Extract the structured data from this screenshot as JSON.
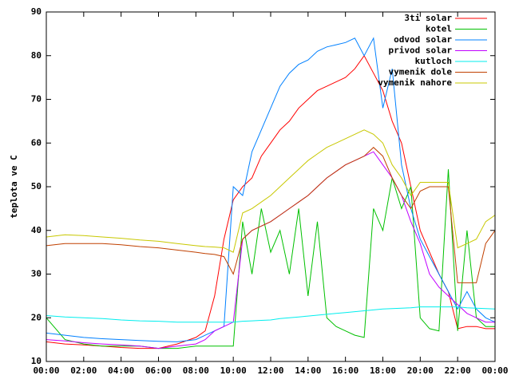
{
  "chart_data": {
    "type": "line",
    "ylabel": "teplota ve C",
    "x": [
      0,
      1,
      2,
      3,
      4,
      5,
      6,
      7,
      8,
      8.5,
      9,
      9.5,
      10,
      10.5,
      11,
      11.5,
      12,
      12.5,
      13,
      13.5,
      14,
      14.5,
      15,
      15.5,
      16,
      16.5,
      17,
      17.5,
      18,
      18.5,
      19,
      19.5,
      20,
      20.5,
      21,
      21.5,
      22,
      22.5,
      23,
      23.5,
      24
    ],
    "xlim": [
      0,
      24
    ],
    "xticks": [
      {
        "value": 0,
        "label": "00:00"
      },
      {
        "value": 2,
        "label": "02:00"
      },
      {
        "value": 4,
        "label": "04:00"
      },
      {
        "value": 6,
        "label": "06:00"
      },
      {
        "value": 8,
        "label": "08:00"
      },
      {
        "value": 10,
        "label": "10:00"
      },
      {
        "value": 12,
        "label": "12:00"
      },
      {
        "value": 14,
        "label": "14:00"
      },
      {
        "value": 16,
        "label": "16:00"
      },
      {
        "value": 18,
        "label": "18:00"
      },
      {
        "value": 20,
        "label": "20:00"
      },
      {
        "value": 22,
        "label": "22:00"
      },
      {
        "value": 24,
        "label": "00:00"
      }
    ],
    "ylim": [
      10,
      90
    ],
    "yticks": [
      10,
      20,
      30,
      40,
      50,
      60,
      70,
      80,
      90
    ],
    "legend": "top-right",
    "series": [
      {
        "name": "3ti solar",
        "color": "#ff0000",
        "values": [
          14.5,
          14,
          13.8,
          13.5,
          13.2,
          13,
          13,
          14,
          15.5,
          17,
          25,
          38,
          47,
          50,
          52,
          57,
          60,
          63,
          65,
          68,
          70,
          72,
          73,
          74,
          75,
          77,
          80,
          76,
          72,
          65,
          60,
          50,
          40,
          35,
          30,
          26,
          17.5,
          18,
          18,
          17.5,
          17.5
        ]
      },
      {
        "name": "kotel",
        "color": "#00c000",
        "values": [
          20,
          15,
          14,
          13.5,
          13.5,
          13.5,
          13,
          13,
          13.5,
          13.5,
          13.5,
          13.5,
          13.5,
          42,
          30,
          45,
          35,
          40,
          30,
          45,
          25,
          42,
          20,
          18,
          17,
          16,
          15.5,
          45,
          40,
          52,
          45,
          50,
          20,
          17.5,
          17,
          54,
          17,
          40,
          20,
          18,
          18
        ]
      },
      {
        "name": "odvod solar",
        "color": "#0080ff",
        "values": [
          16.5,
          16,
          15.5,
          15.2,
          15,
          14.8,
          14.6,
          14.5,
          15,
          16,
          17,
          18,
          50,
          48,
          58,
          63,
          68,
          73,
          76,
          78,
          79,
          81,
          82,
          82.5,
          83,
          84,
          80,
          84,
          68,
          77,
          55,
          45,
          38,
          34,
          30,
          26,
          22,
          26,
          22,
          20,
          19
        ]
      },
      {
        "name": "privod solar",
        "color": "#c000ff",
        "values": [
          15,
          14.7,
          14.3,
          14,
          13.8,
          13.5,
          13,
          13.5,
          14,
          15,
          17,
          18,
          19,
          38,
          40,
          41,
          42,
          43.5,
          45,
          46.5,
          48,
          50,
          52,
          53.5,
          55,
          56,
          57,
          58,
          55,
          52,
          48,
          42,
          37,
          30,
          27,
          25,
          23,
          21,
          20,
          19,
          19
        ]
      },
      {
        "name": "kutloch",
        "color": "#00eeee",
        "values": [
          20.5,
          20.2,
          20,
          19.8,
          19.5,
          19.3,
          19.2,
          19,
          19,
          19,
          19,
          19,
          19,
          19.2,
          19.3,
          19.4,
          19.5,
          19.8,
          20,
          20.2,
          20.4,
          20.6,
          20.8,
          21,
          21.2,
          21.4,
          21.6,
          21.8,
          22,
          22.1,
          22.2,
          22.3,
          22.5,
          22.5,
          22.5,
          22.5,
          22.5,
          22.3,
          22.2,
          22.1,
          22
        ]
      },
      {
        "name": "vymenik dole",
        "color": "#c04000",
        "values": [
          36.5,
          37,
          37,
          37,
          36.7,
          36.3,
          36,
          35.5,
          35,
          34.7,
          34.5,
          34,
          30,
          38,
          40,
          41,
          42,
          43.5,
          45,
          46.5,
          48,
          50,
          52,
          53.5,
          55,
          56,
          57,
          59,
          57,
          52,
          48,
          45,
          49,
          50,
          50,
          50,
          28,
          28,
          28,
          37,
          40
        ]
      },
      {
        "name": "vymenik nahore",
        "color": "#c8c800",
        "values": [
          38.5,
          39,
          38.8,
          38.5,
          38.2,
          37.8,
          37.5,
          37,
          36.5,
          36.3,
          36.2,
          36,
          35,
          44,
          45,
          46.5,
          48,
          50,
          52,
          54,
          56,
          57.5,
          59,
          60,
          61,
          62,
          63,
          62,
          60,
          55,
          52,
          48,
          51,
          51,
          51,
          51,
          36,
          37,
          38,
          42,
          43.5
        ]
      }
    ]
  }
}
